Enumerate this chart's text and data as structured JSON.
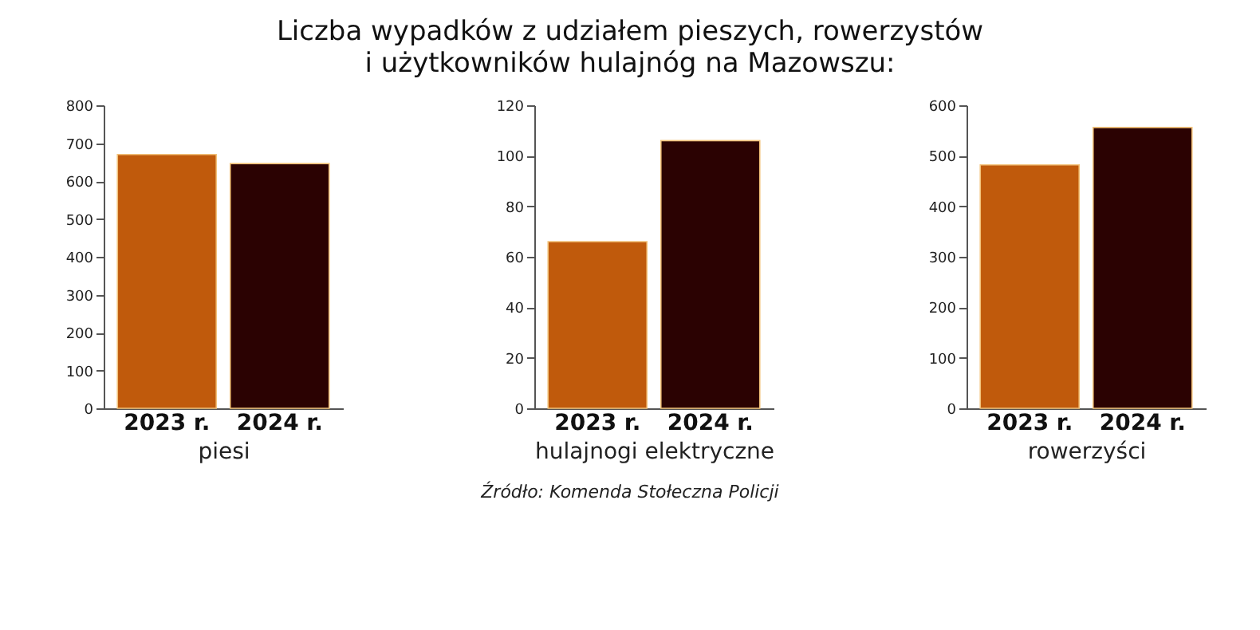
{
  "chart_data": [
    {
      "type": "bar",
      "title": [
        "Liczba wypadków z udziałem pieszych, rowerzystów",
        "i użytkowników hulajnóg na Mazowszu:"
      ],
      "categories": [
        "2023 r.",
        "2024 r."
      ],
      "values": [
        670,
        646
      ],
      "colors": [
        "#c05a0c",
        "#2b0202"
      ],
      "xlabel": "piesi",
      "ylim": [
        0,
        800
      ],
      "yticks": [
        0,
        100,
        200,
        300,
        400,
        500,
        600,
        700,
        800
      ],
      "grid": false
    },
    {
      "type": "bar",
      "categories": [
        "2023 r.",
        "2024 r."
      ],
      "values": [
        66,
        106
      ],
      "colors": [
        "#c05a0c",
        "#2b0202"
      ],
      "xlabel": "hulajnogi elektryczne",
      "ylim": [
        0,
        120
      ],
      "yticks": [
        0,
        20,
        40,
        60,
        80,
        100,
        120
      ],
      "grid": false
    },
    {
      "type": "bar",
      "categories": [
        "2023 r.",
        "2024 r."
      ],
      "values": [
        482,
        556
      ],
      "colors": [
        "#c05a0c",
        "#2b0202"
      ],
      "xlabel": "rowerzyści",
      "ylim": [
        0,
        600
      ],
      "yticks": [
        0,
        100,
        200,
        300,
        400,
        500,
        600
      ],
      "grid": false,
      "annotations": [
        "Źródło: Komenda Stołeczna Policji"
      ]
    }
  ]
}
